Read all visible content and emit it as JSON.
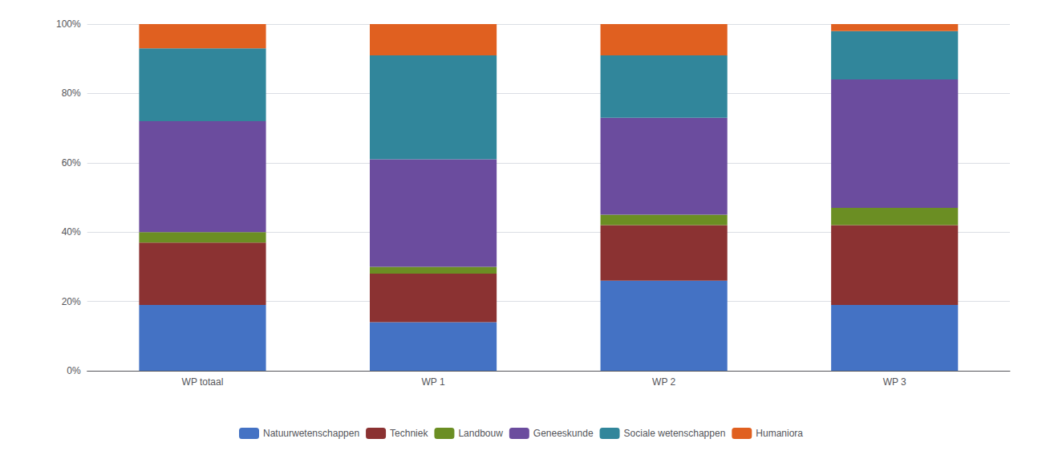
{
  "chart_data": {
    "type": "bar",
    "stacked": true,
    "categories": [
      "WP totaal",
      "WP 1",
      "WP 2",
      "WP 3"
    ],
    "series": [
      {
        "name": "Natuurwetenschappen",
        "color": "#4472C4",
        "values": [
          19,
          14,
          26,
          19
        ]
      },
      {
        "name": "Techniek",
        "color": "#8B3232",
        "values": [
          18,
          14,
          16,
          23
        ]
      },
      {
        "name": "Landbouw",
        "color": "#6B8E23",
        "values": [
          3,
          2,
          3,
          5
        ]
      },
      {
        "name": "Geneeskunde",
        "color": "#6B4C9E",
        "values": [
          32,
          31,
          28,
          37
        ]
      },
      {
        "name": "Sociale wetenschappen",
        "color": "#31869B",
        "values": [
          21,
          30,
          18,
          14
        ]
      },
      {
        "name": "Humaniora",
        "color": "#E06020",
        "values": [
          7,
          9,
          9,
          2
        ]
      }
    ],
    "ylim": [
      0,
      100
    ],
    "yticks": [
      {
        "value": 0,
        "label": "0%"
      },
      {
        "value": 20,
        "label": "20%"
      },
      {
        "value": 40,
        "label": "40%"
      },
      {
        "value": 60,
        "label": "60%"
      },
      {
        "value": 80,
        "label": "80%"
      },
      {
        "value": 100,
        "label": "100%"
      }
    ],
    "grid": true,
    "legend": "bottom"
  }
}
